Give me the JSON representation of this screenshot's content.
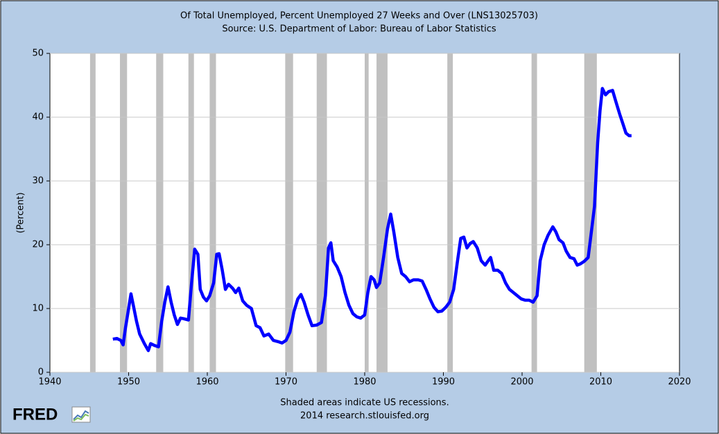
{
  "chart_data": {
    "type": "line",
    "title": "Of Total Unemployed, Percent Unemployed 27 Weeks and Over (LNS13025703)",
    "subtitle": "Source: U.S. Department of Labor: Bureau of Labor Statistics",
    "y_label": "(Percent)",
    "note": "Shaded areas indicate US recessions.",
    "credit": "2014 research.stlouisfed.org",
    "logo": "FRED",
    "xlim": [
      1940,
      2020
    ],
    "xticks": [
      1940,
      1950,
      1960,
      1970,
      1980,
      1990,
      2000,
      2010,
      2020
    ],
    "ylim": [
      0,
      50
    ],
    "yticks": [
      0,
      10,
      20,
      30,
      40,
      50
    ],
    "grid": true,
    "recession_color": "#c0c0c0",
    "recessions": [
      [
        1945.1,
        1945.8
      ],
      [
        1948.9,
        1949.8
      ],
      [
        1953.5,
        1954.4
      ],
      [
        1957.6,
        1958.3
      ],
      [
        1960.3,
        1961.1
      ],
      [
        1969.9,
        1970.9
      ],
      [
        1973.9,
        1975.2
      ],
      [
        1980.0,
        1980.5
      ],
      [
        1981.5,
        1982.9
      ],
      [
        1990.5,
        1991.2
      ],
      [
        2001.2,
        2001.9
      ],
      [
        2007.9,
        2009.5
      ]
    ],
    "series": [
      {
        "color": "#0000ff",
        "x": [
          1948.0,
          1948.5,
          1949.0,
          1949.3,
          1949.6,
          1950.0,
          1950.3,
          1950.6,
          1951.0,
          1951.4,
          1952.0,
          1952.5,
          1952.8,
          1953.3,
          1953.8,
          1954.2,
          1954.6,
          1955.0,
          1955.4,
          1955.8,
          1956.2,
          1956.6,
          1957.0,
          1957.6,
          1958.0,
          1958.4,
          1958.8,
          1959.1,
          1959.5,
          1959.9,
          1960.3,
          1960.8,
          1961.2,
          1961.5,
          1961.9,
          1962.3,
          1962.7,
          1963.2,
          1963.6,
          1964.0,
          1964.5,
          1965.0,
          1965.6,
          1966.2,
          1966.7,
          1967.2,
          1967.8,
          1968.4,
          1969.0,
          1969.5,
          1970.0,
          1970.5,
          1971.0,
          1971.5,
          1971.9,
          1972.3,
          1972.8,
          1973.3,
          1973.9,
          1974.5,
          1975.0,
          1975.4,
          1975.7,
          1976.0,
          1976.5,
          1977.0,
          1977.5,
          1978.0,
          1978.5,
          1979.0,
          1979.5,
          1980.0,
          1980.4,
          1980.8,
          1981.2,
          1981.5,
          1981.9,
          1982.4,
          1982.9,
          1983.3,
          1983.7,
          1984.2,
          1984.7,
          1985.2,
          1985.7,
          1986.2,
          1986.8,
          1987.3,
          1987.8,
          1988.3,
          1988.8,
          1989.3,
          1989.8,
          1990.3,
          1990.8,
          1991.3,
          1991.8,
          1992.2,
          1992.6,
          1993.0,
          1993.4,
          1993.8,
          1994.3,
          1994.8,
          1995.3,
          1995.7,
          1996.0,
          1996.4,
          1996.9,
          1997.4,
          1997.9,
          1998.4,
          1998.9,
          1999.4,
          1999.9,
          2000.4,
          2000.9,
          2001.4,
          2001.9,
          2002.3,
          2002.8,
          2003.3,
          2003.9,
          2004.3,
          2004.7,
          2005.2,
          2005.6,
          2006.1,
          2006.6,
          2007.0,
          2007.4,
          2007.9,
          2008.4,
          2008.8,
          2009.2,
          2009.6,
          2009.9,
          2010.2,
          2010.6,
          2011.0,
          2011.5,
          2011.9,
          2012.4,
          2012.8,
          2013.2,
          2013.6,
          2013.9
        ],
        "values": [
          5.2,
          5.3,
          5.0,
          4.3,
          7,
          10,
          12.3,
          10.5,
          8,
          6,
          4.5,
          3.4,
          4.5,
          4.2,
          4.0,
          8,
          11,
          13.4,
          11,
          9,
          7.5,
          8.5,
          8.4,
          8.2,
          14,
          19.3,
          18.5,
          13,
          11.8,
          11.2,
          12,
          14,
          18.5,
          18.6,
          16,
          13,
          13.8,
          13.2,
          12.5,
          13.2,
          11.2,
          10.5,
          10,
          7.3,
          7,
          5.7,
          6.0,
          5.0,
          4.8,
          4.6,
          5,
          6.3,
          9.5,
          11.5,
          12.2,
          11,
          9,
          7.3,
          7.4,
          7.8,
          12,
          19.5,
          20.3,
          17.5,
          16.5,
          15,
          12.5,
          10.5,
          9.2,
          8.7,
          8.5,
          9.0,
          12.5,
          15,
          14.5,
          13.3,
          14,
          18,
          22.5,
          24.8,
          22,
          18,
          15.5,
          15,
          14.2,
          14.5,
          14.5,
          14.3,
          13,
          11.5,
          10.2,
          9.5,
          9.6,
          10.2,
          11,
          13,
          17.5,
          21,
          21.2,
          19.5,
          20.2,
          20.5,
          19.5,
          17.5,
          16.8,
          17.5,
          18,
          16,
          16,
          15.5,
          14,
          13,
          12.5,
          12,
          11.5,
          11.3,
          11.3,
          11,
          12,
          17.5,
          20,
          21.5,
          22.8,
          22,
          20.8,
          20.3,
          19,
          18,
          17.8,
          16.8,
          17,
          17.4,
          18,
          22,
          26,
          36,
          41,
          44.5,
          43.5,
          44,
          44.2,
          42.5,
          40.5,
          39,
          37.5,
          37.1,
          37.1
        ]
      }
    ]
  }
}
